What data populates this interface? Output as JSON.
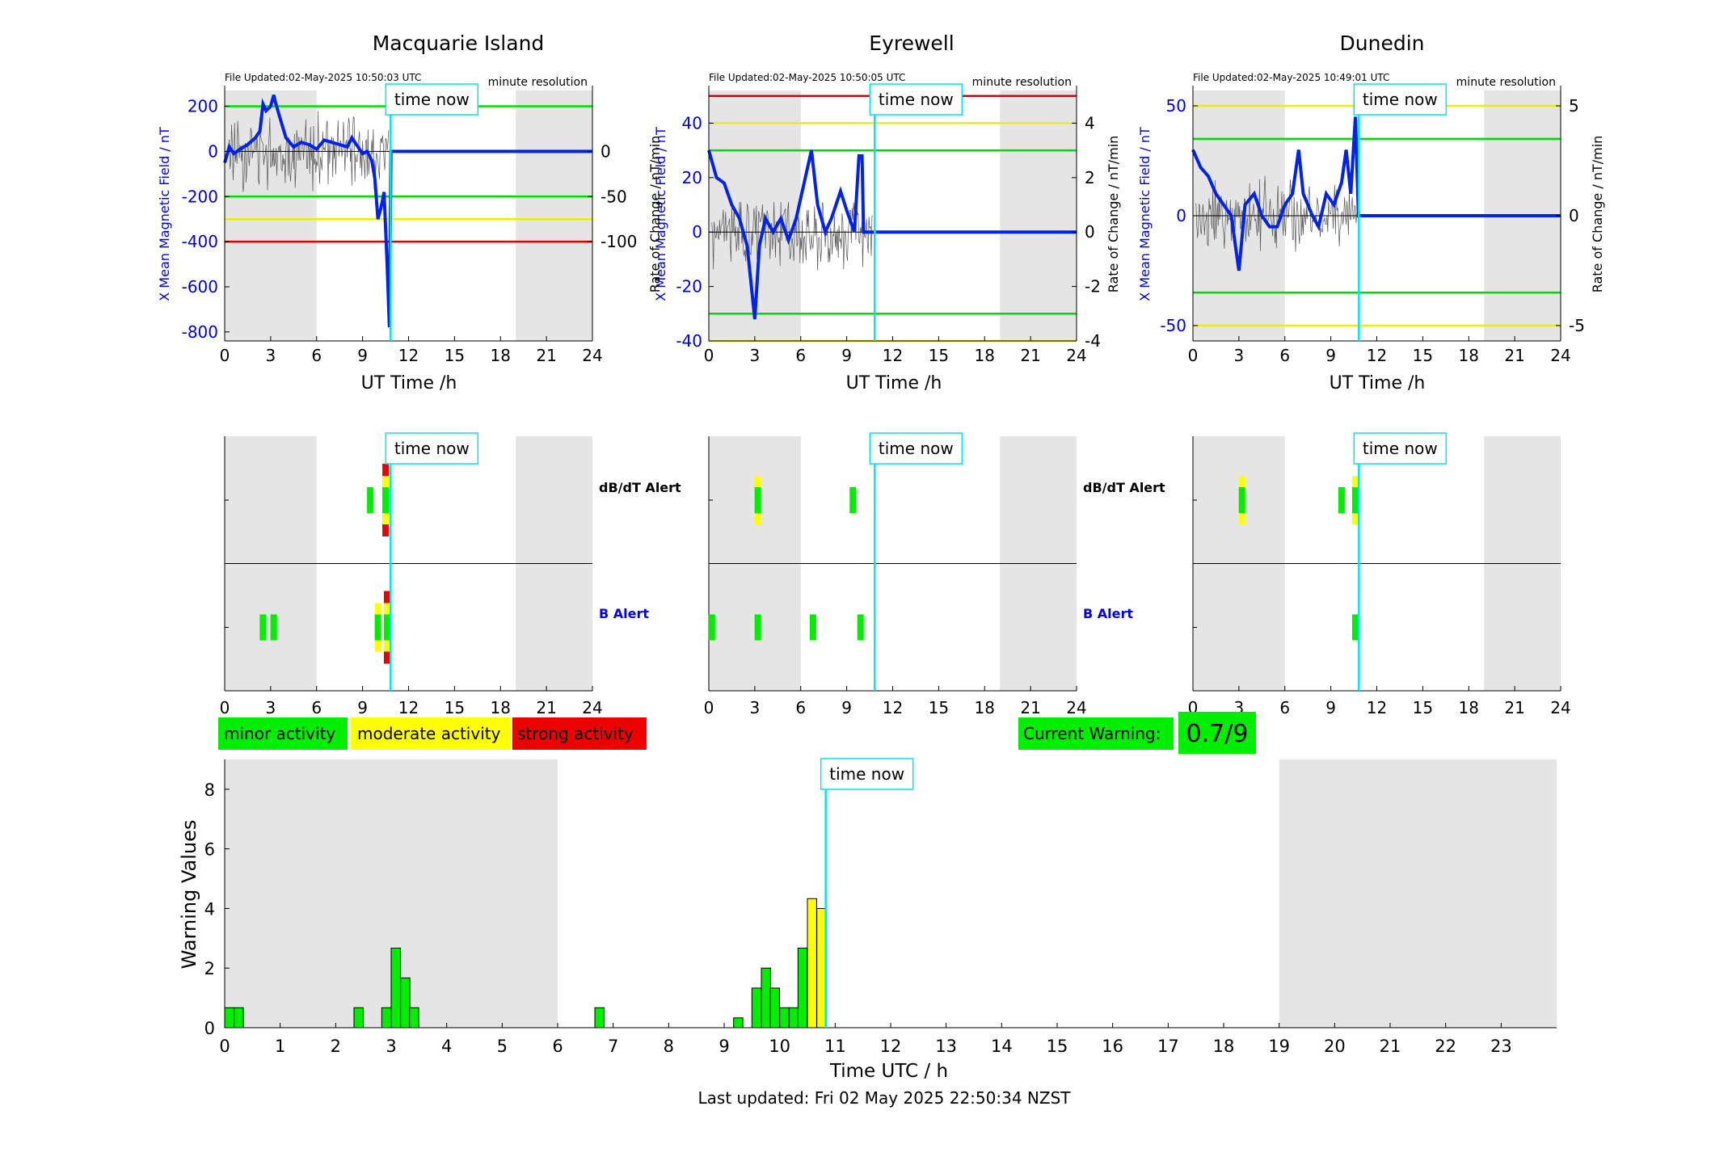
{
  "stations": [
    {
      "title": "Macquarie Island",
      "file_updated": "File Updated:02-May-2025 10:50:03 UTC",
      "resolution": "minute resolution",
      "left_ylabel": "X Mean Magnetic Field / nT",
      "right_ylabel": "",
      "left_ticks": [
        200,
        0,
        -200,
        -400,
        -600,
        -800
      ],
      "right_ticks": [
        0,
        -50,
        -100
      ],
      "ylim": [
        -840,
        270
      ],
      "right_scale": 4,
      "thresholds": [
        {
          "value": 200,
          "color": "#00dd00"
        },
        {
          "value": -200,
          "color": "#00dd00"
        },
        {
          "value": -300,
          "color": "#eeee00"
        },
        {
          "value": -400,
          "color": "#dd0000"
        }
      ],
      "time_now_label": "time now",
      "b_field": [
        [
          0,
          -50
        ],
        [
          0.3,
          20
        ],
        [
          0.6,
          -10
        ],
        [
          1,
          10
        ],
        [
          1.5,
          30
        ],
        [
          2,
          60
        ],
        [
          2.3,
          90
        ],
        [
          2.5,
          210
        ],
        [
          2.7,
          180
        ],
        [
          3,
          200
        ],
        [
          3.2,
          250
        ],
        [
          3.3,
          220
        ],
        [
          3.6,
          150
        ],
        [
          4,
          60
        ],
        [
          4.5,
          20
        ],
        [
          5,
          40
        ],
        [
          5.5,
          30
        ],
        [
          6,
          10
        ],
        [
          6.5,
          50
        ],
        [
          7,
          40
        ],
        [
          7.5,
          30
        ],
        [
          8,
          20
        ],
        [
          8.3,
          60
        ],
        [
          8.6,
          30
        ],
        [
          9,
          -10
        ],
        [
          9.3,
          0
        ],
        [
          9.6,
          -40
        ],
        [
          9.8,
          -120
        ],
        [
          10,
          -300
        ],
        [
          10.2,
          -250
        ],
        [
          10.4,
          -180
        ],
        [
          10.6,
          -500
        ],
        [
          10.75,
          -780
        ],
        [
          10.85,
          0
        ],
        [
          24,
          0
        ]
      ],
      "db_alert": [
        {
          "t": 9.5,
          "level": 1
        },
        {
          "t": 10.5,
          "level": 3
        }
      ],
      "b_alert": [
        {
          "t": 2.5,
          "level": 1
        },
        {
          "t": 3.2,
          "level": 1
        },
        {
          "t": 10,
          "level": 2
        },
        {
          "t": 10.6,
          "level": 3
        }
      ]
    },
    {
      "title": "Eyrewell",
      "file_updated": "File Updated:02-May-2025 10:50:05 UTC",
      "resolution": "minute resolution",
      "left_ylabel": "X Mean Magnetic Field / nT",
      "right_ylabel": "Rate of Change / nT/min",
      "left_ticks": [
        40,
        20,
        0,
        -20,
        -40
      ],
      "right_ticks": [
        4,
        2,
        0,
        -2,
        -4
      ],
      "ylim": [
        -40,
        52
      ],
      "right_scale": 0.1,
      "thresholds": [
        {
          "value": 50,
          "color": "#dd0000"
        },
        {
          "value": 40,
          "color": "#eeee00"
        },
        {
          "value": 30,
          "color": "#00dd00"
        },
        {
          "value": -30,
          "color": "#00dd00"
        },
        {
          "value": -40,
          "color": "#eeee00"
        }
      ],
      "time_now_label": "time now",
      "b_field": [
        [
          0,
          30
        ],
        [
          0.5,
          20
        ],
        [
          1,
          18
        ],
        [
          1.5,
          10
        ],
        [
          2,
          5
        ],
        [
          2.5,
          -5
        ],
        [
          3,
          -32
        ],
        [
          3.3,
          -5
        ],
        [
          3.7,
          5
        ],
        [
          4.2,
          0
        ],
        [
          4.7,
          5
        ],
        [
          5.2,
          -3
        ],
        [
          5.7,
          5
        ],
        [
          6.3,
          20
        ],
        [
          6.7,
          30
        ],
        [
          7.1,
          10
        ],
        [
          7.6,
          0
        ],
        [
          8,
          5
        ],
        [
          8.6,
          15
        ],
        [
          9,
          8
        ],
        [
          9.5,
          0
        ],
        [
          9.8,
          28
        ],
        [
          10,
          28
        ],
        [
          10.1,
          0
        ],
        [
          24,
          0
        ]
      ],
      "db_alert": [
        {
          "t": 3.2,
          "level": 2
        },
        {
          "t": 9.4,
          "level": 1
        }
      ],
      "b_alert": [
        {
          "t": 0.2,
          "level": 1
        },
        {
          "t": 3.2,
          "level": 1
        },
        {
          "t": 6.8,
          "level": 1
        },
        {
          "t": 9.9,
          "level": 1
        }
      ]
    },
    {
      "title": "Dunedin",
      "file_updated": "File Updated:02-May-2025 10:49:01 UTC",
      "resolution": "minute resolution",
      "left_ylabel": "X Mean Magnetic Field / nT",
      "right_ylabel": "Rate of Change / nT/min",
      "left_ticks": [
        50,
        0,
        -50
      ],
      "right_ticks": [
        5,
        0,
        -5
      ],
      "ylim": [
        -57,
        57
      ],
      "right_scale": 0.1,
      "thresholds": [
        {
          "value": 50,
          "color": "#eeee00"
        },
        {
          "value": 35,
          "color": "#00dd00"
        },
        {
          "value": -35,
          "color": "#00dd00"
        },
        {
          "value": -50,
          "color": "#eeee00"
        }
      ],
      "time_now_label": "time now",
      "b_field": [
        [
          0,
          30
        ],
        [
          0.5,
          22
        ],
        [
          1,
          18
        ],
        [
          1.5,
          10
        ],
        [
          2,
          5
        ],
        [
          2.5,
          0
        ],
        [
          3,
          -25
        ],
        [
          3.4,
          5
        ],
        [
          4,
          10
        ],
        [
          4.5,
          0
        ],
        [
          5,
          -5
        ],
        [
          5.5,
          -5
        ],
        [
          6,
          5
        ],
        [
          6.5,
          10
        ],
        [
          6.9,
          30
        ],
        [
          7.2,
          10
        ],
        [
          7.8,
          0
        ],
        [
          8.2,
          -5
        ],
        [
          8.7,
          10
        ],
        [
          9.2,
          5
        ],
        [
          9.7,
          15
        ],
        [
          10,
          30
        ],
        [
          10.3,
          10
        ],
        [
          10.6,
          45
        ],
        [
          10.8,
          0
        ],
        [
          24,
          0
        ]
      ],
      "db_alert": [
        {
          "t": 3.2,
          "level": 2
        },
        {
          "t": 9.7,
          "level": 1
        },
        {
          "t": 10.6,
          "level": 2
        }
      ],
      "b_alert": [
        {
          "t": 10.6,
          "level": 1
        }
      ]
    }
  ],
  "common": {
    "x_label": "UT Time /h",
    "x_ticks": [
      0,
      3,
      6,
      9,
      12,
      15,
      18,
      21,
      24
    ],
    "night_shade": [
      [
        0,
        6
      ],
      [
        19,
        24
      ]
    ],
    "time_now": 10.83,
    "db_alert_label": "dB/dT Alert",
    "b_alert_label": "B Alert",
    "shade_color": "#e5e5e5",
    "now_color": "#00e5ee"
  },
  "legend": [
    {
      "label": "minor activity",
      "color": "#00ee00"
    },
    {
      "label": "moderate activity",
      "color": "#ffff00"
    },
    {
      "label": "strong activity",
      "color": "#ee0000"
    }
  ],
  "current_warning": {
    "label": "Current Warning:",
    "value": "0.7/9",
    "color": "#00ee00"
  },
  "chart_data": {
    "type": "bar",
    "x_unit": "hours UTC",
    "bin_width": 0.1667,
    "xlabel": "Time UTC / h",
    "ylabel": "Warning Values",
    "ylim": [
      0,
      9
    ],
    "y_ticks": [
      0,
      2,
      4,
      6,
      8
    ],
    "x_ticks": [
      0,
      1,
      2,
      3,
      4,
      5,
      6,
      7,
      8,
      9,
      10,
      11,
      12,
      13,
      14,
      15,
      16,
      17,
      18,
      19,
      20,
      21,
      22,
      23
    ],
    "shaded": [
      [
        0,
        6
      ],
      [
        19,
        24
      ]
    ],
    "time_now": 10.83,
    "time_now_label": "time now",
    "bars": [
      {
        "x": 0.0,
        "value": 0.67,
        "level": 1
      },
      {
        "x": 0.17,
        "value": 0.67,
        "level": 1
      },
      {
        "x": 2.33,
        "value": 0.67,
        "level": 1
      },
      {
        "x": 2.83,
        "value": 0.67,
        "level": 1
      },
      {
        "x": 3.0,
        "value": 2.67,
        "level": 1
      },
      {
        "x": 3.17,
        "value": 1.67,
        "level": 1
      },
      {
        "x": 3.33,
        "value": 0.67,
        "level": 1
      },
      {
        "x": 6.67,
        "value": 0.67,
        "level": 1
      },
      {
        "x": 9.17,
        "value": 0.33,
        "level": 1
      },
      {
        "x": 9.5,
        "value": 1.33,
        "level": 1
      },
      {
        "x": 9.67,
        "value": 2.0,
        "level": 1
      },
      {
        "x": 9.83,
        "value": 1.33,
        "level": 1
      },
      {
        "x": 10.0,
        "value": 0.67,
        "level": 1
      },
      {
        "x": 10.17,
        "value": 0.67,
        "level": 1
      },
      {
        "x": 10.33,
        "value": 2.67,
        "level": 1
      },
      {
        "x": 10.5,
        "value": 4.33,
        "level": 2
      },
      {
        "x": 10.67,
        "value": 4.0,
        "level": 2
      }
    ]
  },
  "footer": "Last updated: Fri 02 May 2025 22:50:34 NZST"
}
